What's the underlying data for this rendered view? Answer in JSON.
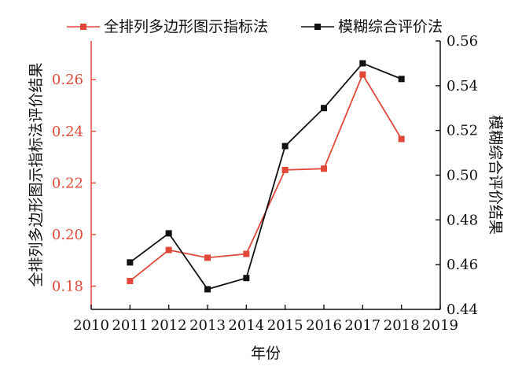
{
  "chart_data": {
    "type": "line",
    "title": "",
    "xlabel": "年份",
    "ylabel_left": "全排列多边形图示指标法评价结果",
    "ylabel_right": "模糊综合评价结果",
    "x_ticks": [
      "2010",
      "2011",
      "2012",
      "2013",
      "2014",
      "2015",
      "2016",
      "2017",
      "2018",
      "2019"
    ],
    "xlim": [
      2010,
      2019
    ],
    "y_left_ticks": [
      "0.18",
      "0.20",
      "0.22",
      "0.24",
      "0.26"
    ],
    "y_left_lim": [
      0.171,
      0.275
    ],
    "y_right_ticks": [
      "0.44",
      "0.46",
      "0.48",
      "0.50",
      "0.52",
      "0.54",
      "0.56"
    ],
    "y_right_lim": [
      0.44,
      0.56
    ],
    "grid": false,
    "legend_position": "top",
    "series": [
      {
        "name": "全排列多边形图示指标法",
        "axis": "left",
        "color": "#e0493a",
        "marker": "square",
        "x": [
          2011,
          2012,
          2013,
          2014,
          2015,
          2016,
          2017,
          2018
        ],
        "values": [
          0.182,
          0.194,
          0.191,
          0.1925,
          0.225,
          0.2255,
          0.262,
          0.237
        ]
      },
      {
        "name": "模糊综合评价法",
        "axis": "right",
        "color": "#111111",
        "marker": "square",
        "x": [
          2011,
          2012,
          2013,
          2014,
          2015,
          2016,
          2017,
          2018
        ],
        "values": [
          0.461,
          0.474,
          0.449,
          0.454,
          0.513,
          0.53,
          0.55,
          0.543
        ]
      }
    ]
  }
}
